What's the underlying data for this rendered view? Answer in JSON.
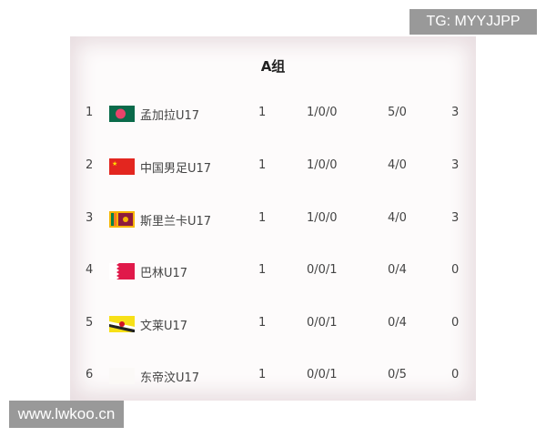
{
  "watermark_top": "TG: MYYJJPP",
  "watermark_bottom": "www.lwkoo.cn",
  "group_title": "A组",
  "rows": [
    {
      "rank": "1",
      "team": "孟加拉U17",
      "flag": "bangladesh-flag",
      "played": "1",
      "wdl": "1/0/0",
      "goals": "5/0",
      "points": "3"
    },
    {
      "rank": "2",
      "team": "中国男足U17",
      "flag": "china-flag",
      "played": "1",
      "wdl": "1/0/0",
      "goals": "4/0",
      "points": "3"
    },
    {
      "rank": "3",
      "team": "斯里兰卡U17",
      "flag": "sri-lanka-flag",
      "played": "1",
      "wdl": "1/0/0",
      "goals": "4/0",
      "points": "3"
    },
    {
      "rank": "4",
      "team": "巴林U17",
      "flag": "bahrain-flag",
      "played": "1",
      "wdl": "0/0/1",
      "goals": "0/4",
      "points": "0"
    },
    {
      "rank": "5",
      "team": "文莱U17",
      "flag": "brunei-flag",
      "played": "1",
      "wdl": "0/0/1",
      "goals": "0/4",
      "points": "0"
    },
    {
      "rank": "6",
      "team": "东帝汶U17",
      "flag": "timor-leste-flag",
      "played": "1",
      "wdl": "0/0/1",
      "goals": "0/5",
      "points": "0"
    }
  ]
}
